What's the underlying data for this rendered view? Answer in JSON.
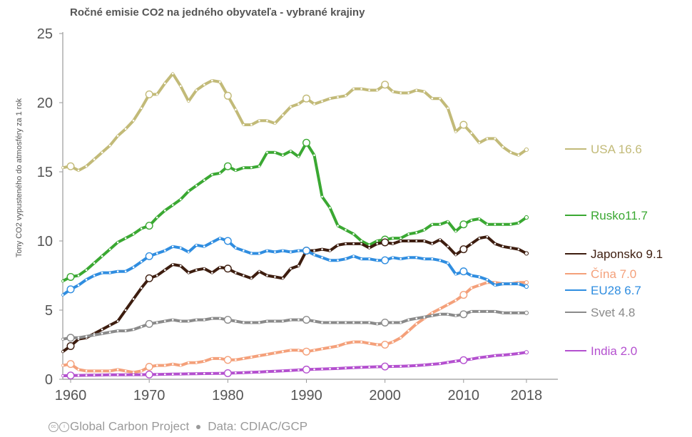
{
  "colors": {
    "USA": "#c2ba78",
    "Rusko": "#3aa832",
    "Japonsko": "#3d1d0f",
    "Čína": "#f4a07a",
    "EU28": "#2f8de0",
    "Svet": "#8a8a8a",
    "India": "#b450cf"
  },
  "footer": {
    "icons": [
      "creative-commons-icon",
      "attribution-icon"
    ],
    "credit": "Global Carbon Project",
    "data_source": "Data: CDIAC/GCP"
  },
  "chart_data": {
    "type": "line",
    "title": "Ročné emisie CO2 na jedného obyvateľa - vybrané krajiny",
    "xlabel": "",
    "ylabel": "Tony CO2 vypusteného do atmosféry za 1 rok",
    "xlim": [
      1959,
      2022
    ],
    "ylim": [
      0,
      25
    ],
    "x_ticks": [
      1960,
      1970,
      1980,
      1990,
      2000,
      2010,
      2018
    ],
    "y_ticks": [
      0,
      5,
      10,
      15,
      20,
      25
    ],
    "grid": false,
    "series": [
      {
        "name": "USA",
        "end_label": "USA 16.6",
        "x": [
          1959,
          1960,
          1961,
          1962,
          1963,
          1964,
          1965,
          1966,
          1967,
          1968,
          1969,
          1970,
          1971,
          1972,
          1973,
          1974,
          1975,
          1976,
          1977,
          1978,
          1979,
          1980,
          1981,
          1982,
          1983,
          1984,
          1985,
          1986,
          1987,
          1988,
          1989,
          1990,
          1991,
          1992,
          1993,
          1994,
          1995,
          1996,
          1997,
          1998,
          1999,
          2000,
          2001,
          2002,
          2003,
          2004,
          2005,
          2006,
          2007,
          2008,
          2009,
          2010,
          2011,
          2012,
          2013,
          2014,
          2015,
          2016,
          2017,
          2018
        ],
        "y": [
          15.3,
          15.4,
          15.1,
          15.4,
          15.9,
          16.4,
          16.9,
          17.6,
          18.1,
          18.7,
          19.6,
          20.6,
          20.6,
          21.4,
          22.1,
          21.2,
          20.1,
          20.9,
          21.3,
          21.6,
          21.5,
          20.5,
          19.5,
          18.4,
          18.4,
          18.7,
          18.7,
          18.5,
          19.1,
          19.7,
          19.9,
          20.3,
          19.9,
          20.1,
          20.3,
          20.4,
          20.5,
          21.0,
          21.0,
          20.9,
          20.9,
          21.3,
          20.8,
          20.7,
          20.7,
          20.9,
          20.8,
          20.3,
          20.3,
          19.6,
          17.9,
          18.4,
          17.8,
          17.1,
          17.4,
          17.4,
          16.8,
          16.4,
          16.2,
          16.6
        ]
      },
      {
        "name": "Rusko",
        "end_label": "Rusko11.7",
        "x": [
          1959,
          1960,
          1961,
          1962,
          1963,
          1964,
          1965,
          1966,
          1967,
          1968,
          1969,
          1970,
          1971,
          1972,
          1973,
          1974,
          1975,
          1976,
          1977,
          1978,
          1979,
          1980,
          1981,
          1982,
          1983,
          1984,
          1985,
          1986,
          1987,
          1988,
          1989,
          1990,
          1991,
          1992,
          1993,
          1994,
          1995,
          1996,
          1997,
          1998,
          1999,
          2000,
          2001,
          2002,
          2003,
          2004,
          2005,
          2006,
          2007,
          2008,
          2009,
          2010,
          2011,
          2012,
          2013,
          2014,
          2015,
          2016,
          2017,
          2018
        ],
        "y": [
          7.1,
          7.4,
          7.5,
          7.9,
          8.4,
          8.9,
          9.4,
          9.9,
          10.2,
          10.5,
          10.9,
          11.1,
          11.7,
          12.2,
          12.6,
          13.0,
          13.6,
          14.0,
          14.4,
          14.8,
          14.9,
          15.4,
          15.1,
          15.3,
          15.3,
          15.4,
          16.4,
          16.4,
          16.2,
          16.5,
          16.1,
          17.1,
          16.2,
          13.2,
          12.4,
          11.1,
          10.8,
          10.5,
          10.0,
          9.7,
          10.0,
          10.1,
          10.2,
          10.2,
          10.5,
          10.6,
          10.8,
          11.2,
          11.2,
          11.4,
          10.7,
          11.2,
          11.5,
          11.6,
          11.2,
          11.2,
          11.2,
          11.2,
          11.3,
          11.7
        ]
      },
      {
        "name": "Japonsko",
        "end_label": "Japonsko 9.1",
        "x": [
          1959,
          1960,
          1961,
          1962,
          1963,
          1964,
          1965,
          1966,
          1967,
          1968,
          1969,
          1970,
          1971,
          1972,
          1973,
          1974,
          1975,
          1976,
          1977,
          1978,
          1979,
          1980,
          1981,
          1982,
          1983,
          1984,
          1985,
          1986,
          1987,
          1988,
          1989,
          1990,
          1991,
          1992,
          1993,
          1994,
          1995,
          1996,
          1997,
          1998,
          1999,
          2000,
          2001,
          2002,
          2003,
          2004,
          2005,
          2006,
          2007,
          2008,
          2009,
          2010,
          2011,
          2012,
          2013,
          2014,
          2015,
          2016,
          2017,
          2018
        ],
        "y": [
          2.0,
          2.4,
          2.9,
          3.0,
          3.3,
          3.6,
          3.9,
          4.2,
          5.0,
          5.8,
          6.6,
          7.3,
          7.5,
          7.9,
          8.3,
          8.2,
          7.7,
          7.9,
          8.0,
          7.7,
          8.1,
          8.0,
          7.7,
          7.5,
          7.3,
          7.8,
          7.5,
          7.4,
          7.3,
          8.0,
          8.2,
          9.3,
          9.3,
          9.4,
          9.3,
          9.7,
          9.8,
          9.8,
          9.8,
          9.5,
          9.8,
          9.9,
          9.8,
          10.0,
          10.0,
          10.0,
          10.0,
          9.8,
          10.1,
          9.6,
          9.0,
          9.4,
          9.8,
          10.2,
          10.3,
          9.8,
          9.6,
          9.5,
          9.4,
          9.1
        ]
      },
      {
        "name": "Čína",
        "end_label": "Čína 7.0",
        "x": [
          1959,
          1960,
          1961,
          1962,
          1963,
          1964,
          1965,
          1966,
          1967,
          1968,
          1969,
          1970,
          1971,
          1972,
          1973,
          1974,
          1975,
          1976,
          1977,
          1978,
          1979,
          1980,
          1981,
          1982,
          1983,
          1984,
          1985,
          1986,
          1987,
          1988,
          1989,
          1990,
          1991,
          1992,
          1993,
          1994,
          1995,
          1996,
          1997,
          1998,
          1999,
          2000,
          2001,
          2002,
          2003,
          2004,
          2005,
          2006,
          2007,
          2008,
          2009,
          2010,
          2011,
          2012,
          2013,
          2014,
          2015,
          2016,
          2017,
          2018
        ],
        "y": [
          1.0,
          1.1,
          0.7,
          0.6,
          0.6,
          0.6,
          0.6,
          0.7,
          0.6,
          0.5,
          0.6,
          0.9,
          1.0,
          1.0,
          1.1,
          1.0,
          1.2,
          1.2,
          1.3,
          1.5,
          1.5,
          1.4,
          1.4,
          1.5,
          1.6,
          1.7,
          1.8,
          1.9,
          2.0,
          2.1,
          2.1,
          2.0,
          2.1,
          2.2,
          2.3,
          2.4,
          2.6,
          2.7,
          2.7,
          2.6,
          2.5,
          2.5,
          2.7,
          3.0,
          3.5,
          4.0,
          4.4,
          4.8,
          5.1,
          5.4,
          5.7,
          6.1,
          6.6,
          6.8,
          7.0,
          7.0,
          6.9,
          6.9,
          7.0,
          7.0
        ]
      },
      {
        "name": "EU28",
        "end_label": "EU28 6.7",
        "x": [
          1959,
          1960,
          1961,
          1962,
          1963,
          1964,
          1965,
          1966,
          1967,
          1968,
          1969,
          1970,
          1971,
          1972,
          1973,
          1974,
          1975,
          1976,
          1977,
          1978,
          1979,
          1980,
          1981,
          1982,
          1983,
          1984,
          1985,
          1986,
          1987,
          1988,
          1989,
          1990,
          1991,
          1992,
          1993,
          1994,
          1995,
          1996,
          1997,
          1998,
          1999,
          2000,
          2001,
          2002,
          2003,
          2004,
          2005,
          2006,
          2007,
          2008,
          2009,
          2010,
          2011,
          2012,
          2013,
          2014,
          2015,
          2016,
          2017,
          2018
        ],
        "y": [
          6.1,
          6.5,
          6.8,
          7.2,
          7.5,
          7.7,
          7.7,
          7.8,
          7.8,
          8.1,
          8.5,
          8.9,
          9.1,
          9.3,
          9.6,
          9.5,
          9.2,
          9.7,
          9.6,
          9.9,
          10.2,
          10.0,
          9.5,
          9.3,
          9.1,
          9.1,
          9.3,
          9.2,
          9.3,
          9.2,
          9.3,
          9.3,
          9.0,
          8.8,
          8.6,
          8.6,
          8.7,
          8.9,
          8.7,
          8.7,
          8.6,
          8.6,
          8.8,
          8.7,
          8.8,
          8.8,
          8.7,
          8.7,
          8.6,
          8.4,
          7.6,
          7.8,
          7.5,
          7.4,
          7.2,
          6.8,
          6.9,
          6.9,
          6.9,
          6.7
        ]
      },
      {
        "name": "Svet",
        "end_label": "Svet 4.8",
        "x": [
          1959,
          1960,
          1961,
          1962,
          1963,
          1964,
          1965,
          1966,
          1967,
          1968,
          1969,
          1970,
          1971,
          1972,
          1973,
          1974,
          1975,
          1976,
          1977,
          1978,
          1979,
          1980,
          1981,
          1982,
          1983,
          1984,
          1985,
          1986,
          1987,
          1988,
          1989,
          1990,
          1991,
          1992,
          1993,
          1994,
          1995,
          1996,
          1997,
          1998,
          1999,
          2000,
          2001,
          2002,
          2003,
          2004,
          2005,
          2006,
          2007,
          2008,
          2009,
          2010,
          2011,
          2012,
          2013,
          2014,
          2015,
          2016,
          2017,
          2018
        ],
        "y": [
          2.9,
          3.0,
          3.0,
          3.1,
          3.2,
          3.3,
          3.4,
          3.5,
          3.5,
          3.6,
          3.8,
          4.0,
          4.1,
          4.2,
          4.3,
          4.2,
          4.2,
          4.3,
          4.3,
          4.4,
          4.4,
          4.3,
          4.2,
          4.1,
          4.1,
          4.1,
          4.2,
          4.2,
          4.2,
          4.3,
          4.3,
          4.3,
          4.2,
          4.1,
          4.1,
          4.1,
          4.1,
          4.1,
          4.1,
          4.1,
          4.0,
          4.1,
          4.1,
          4.1,
          4.3,
          4.4,
          4.5,
          4.6,
          4.7,
          4.7,
          4.6,
          4.7,
          4.9,
          4.9,
          4.9,
          4.9,
          4.8,
          4.8,
          4.8,
          4.8
        ]
      },
      {
        "name": "India",
        "end_label": "India 2.0",
        "x": [
          1959,
          1960,
          1961,
          1962,
          1963,
          1964,
          1965,
          1966,
          1967,
          1968,
          1969,
          1970,
          1971,
          1972,
          1973,
          1974,
          1975,
          1976,
          1977,
          1978,
          1979,
          1980,
          1981,
          1982,
          1983,
          1984,
          1985,
          1986,
          1987,
          1988,
          1989,
          1990,
          1991,
          1992,
          1993,
          1994,
          1995,
          1996,
          1997,
          1998,
          1999,
          2000,
          2001,
          2002,
          2003,
          2004,
          2005,
          2006,
          2007,
          2008,
          2009,
          2010,
          2011,
          2012,
          2013,
          2014,
          2015,
          2016,
          2017,
          2018
        ],
        "y": [
          0.25,
          0.27,
          0.28,
          0.29,
          0.3,
          0.31,
          0.32,
          0.32,
          0.32,
          0.33,
          0.33,
          0.34,
          0.35,
          0.36,
          0.37,
          0.38,
          0.39,
          0.4,
          0.41,
          0.42,
          0.43,
          0.44,
          0.46,
          0.48,
          0.5,
          0.52,
          0.55,
          0.58,
          0.61,
          0.64,
          0.67,
          0.7,
          0.72,
          0.74,
          0.76,
          0.78,
          0.81,
          0.84,
          0.86,
          0.88,
          0.9,
          0.92,
          0.93,
          0.94,
          0.96,
          0.99,
          1.03,
          1.08,
          1.13,
          1.22,
          1.31,
          1.38,
          1.46,
          1.56,
          1.63,
          1.71,
          1.75,
          1.8,
          1.86,
          1.95
        ]
      }
    ]
  }
}
